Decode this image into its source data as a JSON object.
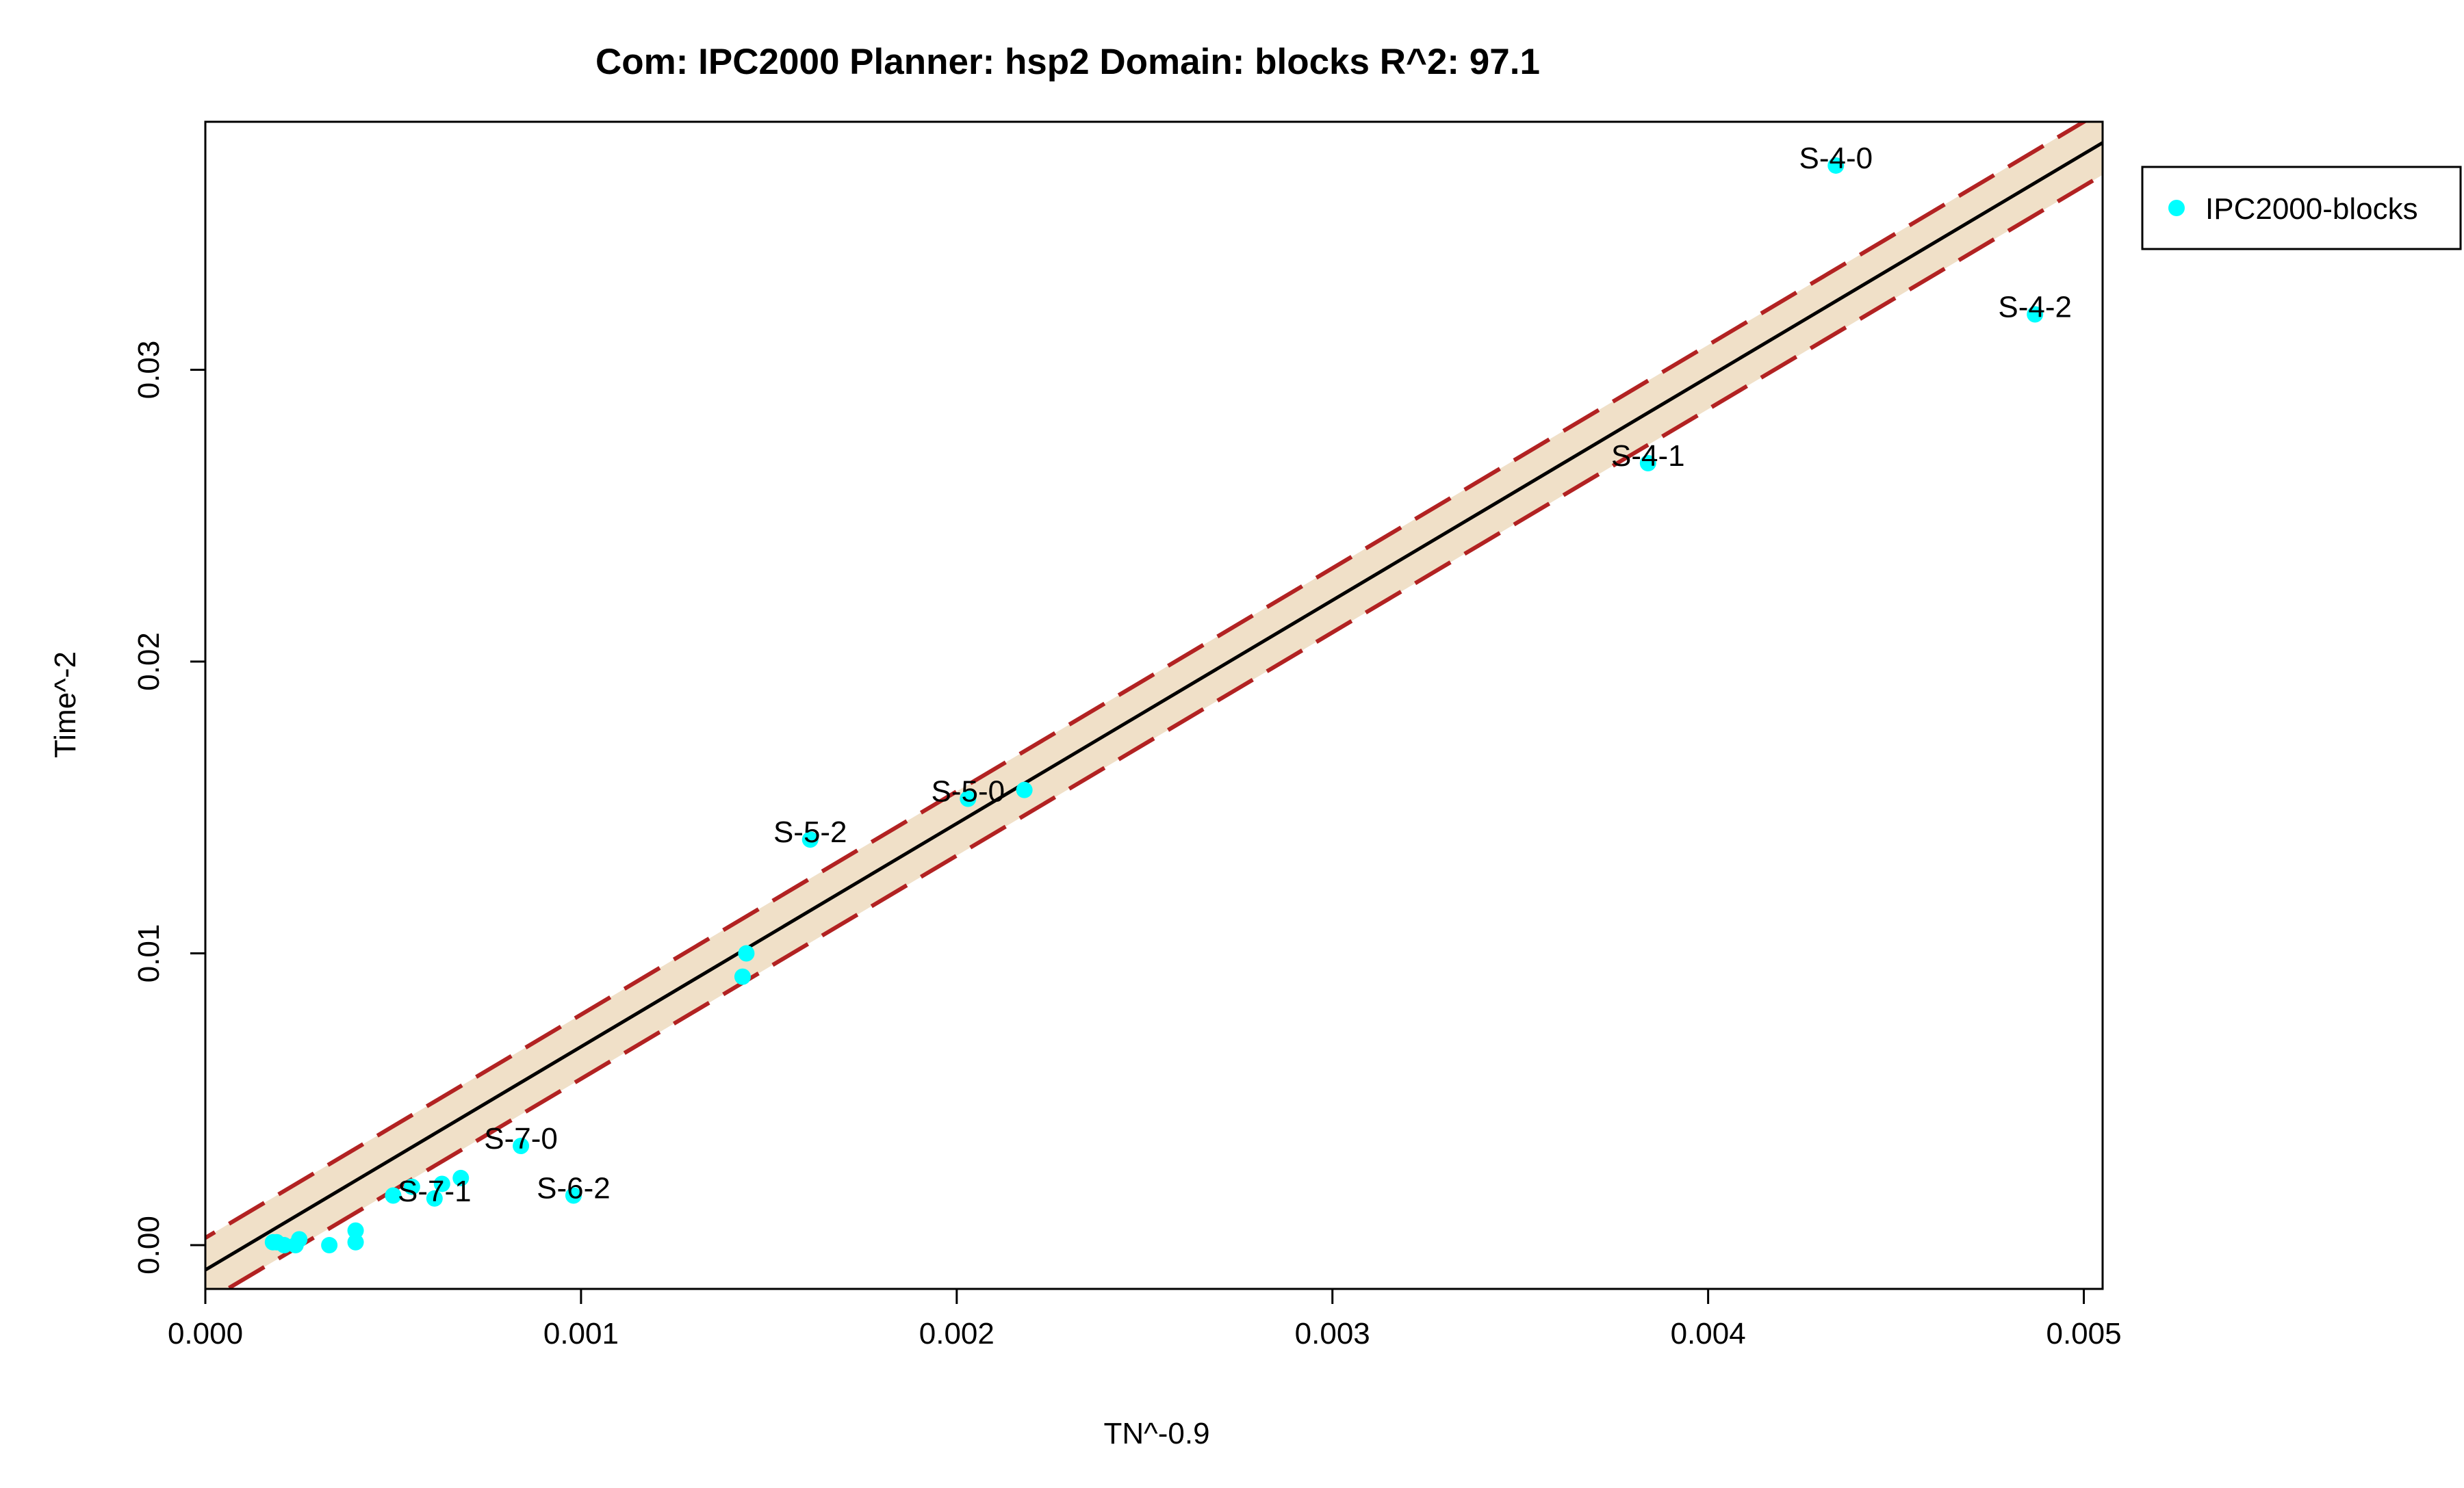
{
  "chart_data": {
    "type": "scatter",
    "title": "Com: IPC2000 Planner: hsp2 Domain: blocks R^2: 97.1",
    "xlabel": "TN^-0.9",
    "ylabel": "Time^-2",
    "xlim": [
      0.0,
      0.00505
    ],
    "ylim": [
      -0.0015,
      0.0385
    ],
    "xticks": [
      0.0,
      0.001,
      0.002,
      0.003,
      0.004,
      0.005
    ],
    "xtick_labels": [
      "0.000",
      "0.001",
      "0.002",
      "0.003",
      "0.004",
      "0.005"
    ],
    "yticks": [
      0.0,
      0.01,
      0.02,
      0.03
    ],
    "ytick_labels": [
      "0.00",
      "0.01",
      "0.02",
      "0.03"
    ],
    "legend": {
      "position": "top-right, outside plot",
      "entries": [
        "IPC2000-blocks"
      ]
    },
    "fit": {
      "slope": 7.65,
      "intercept": -0.00085,
      "band_halfwidth": 0.0011
    },
    "colors": {
      "points": "#00ffff",
      "fit_line": "#000000",
      "band_line": "#b22222",
      "band_fill": "#f0e0c8"
    },
    "series": [
      {
        "name": "IPC2000-blocks",
        "points": [
          {
            "x": 0.00434,
            "y": 0.037,
            "label": "S-4-0"
          },
          {
            "x": 0.00487,
            "y": 0.0319,
            "label": "S-4-2"
          },
          {
            "x": 0.00384,
            "y": 0.0268,
            "label": "S-4-1"
          },
          {
            "x": 0.00218,
            "y": 0.0156,
            "label": ""
          },
          {
            "x": 0.00203,
            "y": 0.0153,
            "label": "S-5-0"
          },
          {
            "x": 0.00161,
            "y": 0.0139,
            "label": "S-5-2"
          },
          {
            "x": 0.00144,
            "y": 0.01,
            "label": ""
          },
          {
            "x": 0.00143,
            "y": 0.0092,
            "label": ""
          },
          {
            "x": 0.00084,
            "y": 0.0034,
            "label": "S-7-0"
          },
          {
            "x": 0.00098,
            "y": 0.0017,
            "label": "S-6-2"
          },
          {
            "x": 0.00061,
            "y": 0.0016,
            "label": "S-7-1"
          },
          {
            "x": 0.00068,
            "y": 0.0023,
            "label": ""
          },
          {
            "x": 0.00063,
            "y": 0.0021,
            "label": ""
          },
          {
            "x": 0.00055,
            "y": 0.002,
            "label": ""
          },
          {
            "x": 0.0005,
            "y": 0.0017,
            "label": ""
          },
          {
            "x": 0.0004,
            "y": 0.0005,
            "label": ""
          },
          {
            "x": 0.0004,
            "y": 0.0001,
            "label": ""
          },
          {
            "x": 0.00033,
            "y": 0.0,
            "label": ""
          },
          {
            "x": 0.00025,
            "y": 0.0002,
            "label": ""
          },
          {
            "x": 0.00024,
            "y": 0.0,
            "label": ""
          },
          {
            "x": 0.00021,
            "y": 0.0,
            "label": ""
          },
          {
            "x": 0.00019,
            "y": 0.0001,
            "label": ""
          },
          {
            "x": 0.00018,
            "y": 0.0001,
            "label": ""
          }
        ]
      }
    ]
  }
}
